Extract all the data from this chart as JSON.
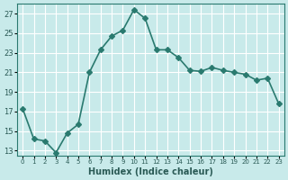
{
  "x": [
    0,
    1,
    2,
    3,
    4,
    5,
    6,
    7,
    8,
    9,
    10,
    11,
    12,
    13,
    14,
    15,
    16,
    17,
    18,
    19,
    20,
    21,
    22,
    23
  ],
  "y": [
    17.3,
    14.2,
    14.0,
    12.8,
    14.8,
    15.7,
    21.0,
    23.3,
    24.7,
    25.3,
    27.4,
    26.5,
    23.3,
    23.3,
    22.5,
    21.2,
    21.1,
    21.5,
    21.2,
    21.0,
    20.8,
    20.2,
    20.4,
    17.8
  ],
  "line_color": "#2a7a6f",
  "bg_color": "#c8eaea",
  "grid_color": "#ffffff",
  "xlabel": "Humidex (Indice chaleur)",
  "ylabel": "",
  "ylim": [
    12.5,
    28
  ],
  "xlim": [
    -0.5,
    23.5
  ],
  "yticks": [
    13,
    15,
    17,
    19,
    21,
    23,
    25,
    27
  ],
  "xtick_labels": [
    "0",
    "1",
    "2",
    "3",
    "4",
    "5",
    "6",
    "7",
    "8",
    "9",
    "10",
    "11",
    "12",
    "13",
    "14",
    "15",
    "16",
    "17",
    "18",
    "19",
    "20",
    "21",
    "22",
    "23"
  ],
  "marker": "D",
  "markersize": 3,
  "linewidth": 1.2,
  "tick_color": "#2a5a55"
}
